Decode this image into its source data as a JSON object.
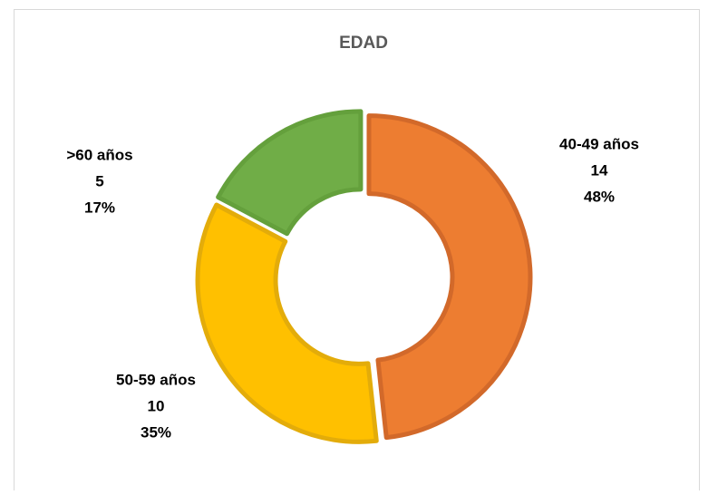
{
  "chart_data": {
    "type": "donut",
    "title": "EDAD",
    "categories": [
      "40-49 años",
      "50-59 años",
      ">60 años"
    ],
    "values": [
      14,
      10,
      5
    ],
    "percent_labels": [
      "48%",
      "35%",
      "17%"
    ],
    "colors": [
      "#ED7D31",
      "#FFC000",
      "#70AD47"
    ],
    "border_colors": [
      "#D2692A",
      "#E3AC0A",
      "#64A03C"
    ]
  }
}
